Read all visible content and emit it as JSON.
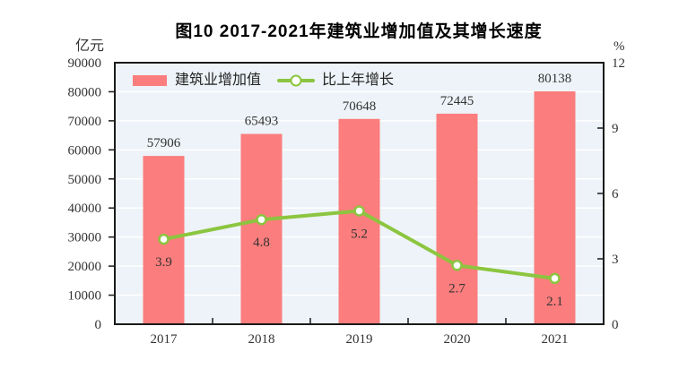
{
  "title": "图10  2017-2021年建筑业增加值及其增长速度",
  "chart_data": {
    "type": "bar",
    "subtype": "bar-line-combo",
    "categories": [
      "2017",
      "2018",
      "2019",
      "2020",
      "2021"
    ],
    "series": [
      {
        "name": "建筑业增加值",
        "type": "bar",
        "axis": "left",
        "values": [
          57906,
          65493,
          70648,
          72445,
          80138
        ],
        "color": "#fb7d7d"
      },
      {
        "name": "比上年增长",
        "type": "line",
        "axis": "right",
        "values": [
          3.9,
          4.8,
          5.2,
          2.7,
          2.1
        ],
        "color": "#8cc53f",
        "marker_fill": "#ffffff"
      }
    ],
    "left_axis": {
      "unit": "亿元",
      "min": 0,
      "max": 90000,
      "step": 10000
    },
    "right_axis": {
      "unit": "%",
      "min": 0,
      "max": 12,
      "step": 3
    },
    "legend_position": "top-left-inside",
    "grid": true,
    "plot_bg": "#edf3f8",
    "gridline_color": "#ffffff",
    "frame_color": "#1a1a1a",
    "text_color": "#333333"
  }
}
